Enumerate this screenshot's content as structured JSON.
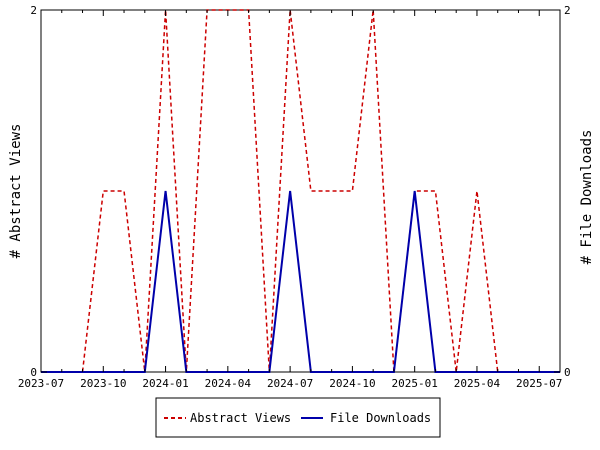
{
  "chart_data": {
    "type": "line",
    "title": "",
    "xlabel": "",
    "ylabel_left": "# Abstract Views",
    "ylabel_right": "# File Downloads",
    "x_ticks": [
      "2023-07",
      "2023-10",
      "2024-01",
      "2024-04",
      "2024-07",
      "2024-10",
      "2025-01",
      "2025-04",
      "2025-07"
    ],
    "y_ticks_left": [
      "0",
      "2"
    ],
    "y_ticks_right": [
      "0",
      "2"
    ],
    "ylim_left": [
      0,
      2
    ],
    "ylim_right": [
      0,
      2
    ],
    "grid": false,
    "legend_position": "bottom",
    "x": [
      "2023-07",
      "2023-08",
      "2023-09",
      "2023-10",
      "2023-11",
      "2023-12",
      "2024-01",
      "2024-02",
      "2024-03",
      "2024-04",
      "2024-05",
      "2024-06",
      "2024-07",
      "2024-08",
      "2024-09",
      "2024-10",
      "2024-11",
      "2024-12",
      "2025-01",
      "2025-02",
      "2025-03",
      "2025-04",
      "2025-05",
      "2025-06",
      "2025-07",
      "2025-08"
    ],
    "series": [
      {
        "name": "Abstract Views",
        "axis": "left",
        "color": "#cc0000",
        "dash": true,
        "values": [
          0,
          0,
          0,
          1,
          1,
          0,
          2,
          0,
          2,
          2,
          2,
          0,
          2,
          1,
          1,
          1,
          2,
          0,
          1,
          1,
          0,
          1,
          0,
          0,
          0,
          0
        ]
      },
      {
        "name": "File Downloads",
        "axis": "right",
        "color": "#0000aa",
        "dash": false,
        "values": [
          0,
          0,
          0,
          0,
          0,
          0,
          1,
          0,
          0,
          0,
          0,
          0,
          1,
          0,
          0,
          0,
          0,
          0,
          1,
          0,
          0,
          0,
          0,
          0,
          0,
          0
        ]
      }
    ]
  }
}
